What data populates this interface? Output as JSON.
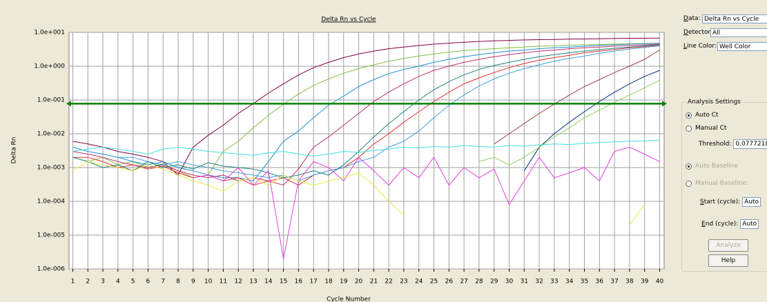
{
  "chart_data": {
    "type": "line",
    "title": "Delta Rn vs Cycle",
    "x_label": "Cycle Number",
    "y_label": "Delta Rn",
    "log_scale": true,
    "grid": true,
    "x": [
      1,
      2,
      3,
      4,
      5,
      6,
      7,
      8,
      9,
      10,
      11,
      12,
      13,
      14,
      15,
      16,
      17,
      18,
      19,
      20,
      21,
      22,
      23,
      24,
      25,
      26,
      27,
      28,
      29,
      30,
      31,
      32,
      33,
      34,
      35,
      36,
      37,
      38,
      39,
      40
    ],
    "xlim": [
      0.75,
      40.3
    ],
    "xticks": [
      1,
      2,
      3,
      4,
      5,
      6,
      7,
      8,
      9,
      10,
      11,
      12,
      13,
      14,
      15,
      16,
      17,
      18,
      19,
      20,
      21,
      22,
      23,
      24,
      25,
      26,
      27,
      28,
      29,
      30,
      31,
      32,
      33,
      34,
      35,
      36,
      37,
      38,
      39,
      40
    ],
    "ylim": [
      1e-06,
      10
    ],
    "yticks": [
      {
        "value": 1e-06,
        "label": "1.0e-006"
      },
      {
        "value": 1e-05,
        "label": "1.0e-005"
      },
      {
        "value": 0.0001,
        "label": "1.0e-004"
      },
      {
        "value": 0.001,
        "label": "1.0e-003"
      },
      {
        "value": 0.01,
        "label": "1.0e-002"
      },
      {
        "value": 0.1,
        "label": "1.0e-001"
      },
      {
        "value": 1,
        "label": "1.0e+000"
      },
      {
        "value": 10,
        "label": "1.0e+001"
      }
    ],
    "threshold": {
      "value": 0.0777218,
      "color": "#008000"
    },
    "series": [
      {
        "color": "#800040",
        "values": [
          0.006,
          0.005,
          0.004,
          0.003,
          0.0025,
          0.002,
          0.0015,
          0.0006,
          0.004,
          0.009,
          0.018,
          0.04,
          0.078,
          0.16,
          0.3,
          0.55,
          0.9,
          1.3,
          1.8,
          2.3,
          2.8,
          3.3,
          3.7,
          4.1,
          4.5,
          4.8,
          5.1,
          5.4,
          5.6,
          5.8,
          6,
          6.1,
          6.2,
          6.3,
          6.4,
          6.5,
          6.6,
          6.7,
          6.7,
          6.8
        ]
      },
      {
        "color": "#80c040",
        "values": [
          0.002,
          0.0015,
          0.002,
          0.0012,
          0.0015,
          0.001,
          0.0013,
          0.0008,
          0.0005,
          0.0006,
          0.003,
          0.006,
          0.015,
          0.035,
          0.075,
          0.15,
          0.27,
          0.42,
          0.62,
          0.85,
          1.1,
          1.4,
          1.7,
          2.0,
          2.3,
          2.6,
          2.9,
          3.1,
          3.3,
          3.5,
          3.7,
          3.9,
          4.0,
          4.2,
          4.3,
          4.4,
          4.5,
          4.6,
          4.7,
          4.8
        ]
      },
      {
        "color": "#1e90d0",
        "values": [
          0.004,
          0.003,
          0.0025,
          0.002,
          0.0015,
          0.0012,
          0.0015,
          0.001,
          0.0008,
          0.0006,
          0.0005,
          0.0005,
          0.0004,
          0.0015,
          0.006,
          0.012,
          0.03,
          0.07,
          0.13,
          0.25,
          0.4,
          0.6,
          0.8,
          1.0,
          1.3,
          1.6,
          1.9,
          2.2,
          2.5,
          2.8,
          3.0,
          3.3,
          3.5,
          3.7,
          3.9,
          4.1,
          4.3,
          4.5,
          4.6,
          4.8
        ]
      },
      {
        "color": "#c03070",
        "values": [
          0.003,
          0.0025,
          0.002,
          0.0015,
          0.0012,
          0.001,
          0.0012,
          0.0008,
          0.0006,
          0.0005,
          0.0006,
          0.0004,
          0.0005,
          0.0004,
          0.0003,
          0.0009,
          0.004,
          0.008,
          0.018,
          0.04,
          0.09,
          0.17,
          0.3,
          0.5,
          0.75,
          1.0,
          1.3,
          1.6,
          1.9,
          2.2,
          2.5,
          2.8,
          3.0,
          3.3,
          3.5,
          3.7,
          3.9,
          4.1,
          4.3,
          4.5
        ]
      },
      {
        "color": "#e03030",
        "values": [
          0.002,
          0.002,
          0.0015,
          0.001,
          0.0012,
          0.0009,
          0.0011,
          0.0007,
          0.0005,
          0.0006,
          0.0004,
          0.0005,
          0.0003,
          0.0004,
          0.0005,
          0.0003,
          0.0006,
          0.0008,
          0.001,
          0.002,
          0.005,
          0.01,
          0.022,
          0.045,
          0.09,
          0.17,
          0.3,
          0.45,
          0.65,
          0.9,
          1.2,
          1.5,
          1.8,
          2.1,
          2.5,
          2.8,
          3.1,
          3.5,
          3.8,
          4.2
        ]
      },
      {
        "color": "#208080",
        "values": [
          0.002,
          0.0015,
          0.001,
          0.0012,
          0.0008,
          0.0015,
          0.001,
          0.0012,
          0.0009,
          0.0014,
          0.0011,
          0.001,
          0.0009,
          0.0007,
          0.0005,
          0.0006,
          0.0008,
          0.0006,
          0.0012,
          0.003,
          0.008,
          0.02,
          0.045,
          0.1,
          0.2,
          0.35,
          0.55,
          0.8,
          1.05,
          1.3,
          1.6,
          1.9,
          2.2,
          2.5,
          2.8,
          3.1,
          3.4,
          3.7,
          4.0,
          4.4
        ]
      },
      {
        "color": "#40a0e0",
        "values": [
          0.004,
          0.003,
          0.0025,
          0.002,
          0.002,
          0.0015,
          0.0012,
          0.0015,
          0.0012,
          0.001,
          0.0008,
          0.0007,
          0.0006,
          0.0005,
          0.0006,
          0.0004,
          0.0006,
          0.0008,
          0.001,
          0.0015,
          0.002,
          0.004,
          0.006,
          0.012,
          0.03,
          0.07,
          0.14,
          0.26,
          0.42,
          0.62,
          0.85,
          1.1,
          1.4,
          1.7,
          2.0,
          2.4,
          2.8,
          3.2,
          3.6,
          4.0
        ]
      },
      {
        "color": "#a04040",
        "values": [
          null,
          null,
          null,
          null,
          null,
          null,
          null,
          null,
          null,
          null,
          null,
          null,
          null,
          null,
          null,
          null,
          null,
          null,
          null,
          null,
          null,
          null,
          null,
          null,
          null,
          null,
          null,
          null,
          0.005,
          0.01,
          0.02,
          0.04,
          0.075,
          0.14,
          0.25,
          0.4,
          0.65,
          1.0,
          1.6,
          3.0
        ]
      },
      {
        "color": "#003080",
        "values": [
          null,
          null,
          null,
          null,
          null,
          null,
          null,
          null,
          null,
          null,
          null,
          null,
          null,
          null,
          null,
          null,
          null,
          null,
          null,
          null,
          null,
          null,
          null,
          null,
          null,
          null,
          null,
          null,
          null,
          null,
          0.0008,
          0.004,
          0.01,
          0.022,
          0.045,
          0.09,
          0.17,
          0.3,
          0.5,
          0.75
        ]
      },
      {
        "color": "#90d060",
        "values": [
          null,
          null,
          null,
          null,
          null,
          null,
          null,
          null,
          null,
          null,
          null,
          null,
          null,
          null,
          null,
          null,
          null,
          null,
          null,
          null,
          null,
          null,
          null,
          null,
          null,
          null,
          null,
          0.0015,
          0.002,
          0.0012,
          0.002,
          0.004,
          0.008,
          0.015,
          0.03,
          0.05,
          0.085,
          0.14,
          0.23,
          0.38
        ]
      },
      {
        "color": "#40e0e0",
        "values": [
          0.003,
          0.0035,
          0.004,
          0.0035,
          0.003,
          0.0025,
          0.0035,
          0.004,
          0.0035,
          0.003,
          0.0028,
          0.0025,
          0.0023,
          0.0027,
          0.003,
          0.0025,
          0.0022,
          0.0025,
          0.003,
          0.0028,
          0.0032,
          0.0035,
          0.004,
          0.0038,
          0.0042,
          0.004,
          0.0045,
          0.0042,
          0.004,
          0.0045,
          0.0043,
          0.0047,
          0.005,
          0.0048,
          0.0052,
          0.0055,
          0.0058,
          0.006,
          0.0062,
          0.0065
        ]
      },
      {
        "color": "#e040e0",
        "values": [
          null,
          null,
          null,
          null,
          null,
          null,
          null,
          null,
          0.0005,
          0.0006,
          0.0004,
          0.001,
          0.0003,
          0.0008,
          2e-06,
          0.0004,
          0.0015,
          0.001,
          0.0004,
          0.002,
          0.0008,
          0.0003,
          0.001,
          0.0005,
          0.002,
          0.0003,
          0.001,
          0.0005,
          0.0009,
          8e-05,
          0.0004,
          0.002,
          0.0005,
          0.0007,
          0.001,
          0.0004,
          0.003,
          0.004,
          0.0025,
          0.0015
        ]
      },
      {
        "color": "#e8e840",
        "values": [
          0.0008,
          0.0015,
          0.0012,
          0.001,
          0.0008,
          0.0012,
          0.0009,
          0.0006,
          0.0004,
          0.0003,
          0.0002,
          0.0004,
          0.0005,
          0.0003,
          0.0006,
          0.0004,
          0.0003,
          0.0004,
          0.0005,
          0.0007,
          0.0003,
          0.0001,
          4e-05,
          null,
          null,
          null,
          null,
          null,
          null,
          null,
          null,
          null,
          null,
          null,
          null,
          null,
          null,
          2e-05,
          8e-05,
          null
        ]
      }
    ]
  },
  "panel": {
    "data": {
      "label": "Data:",
      "value": "Delta Rn vs Cycle"
    },
    "detector": {
      "label": "Detector:",
      "value": "All"
    },
    "line_color": {
      "label": "Line Color:",
      "value": "Well Color"
    },
    "analysis_settings": {
      "title": "Analysis Settings",
      "auto_ct": "Auto Ct",
      "manual_ct": "Manual Ct",
      "threshold_label": "Threshold:",
      "auto_baseline": "Auto Baseline",
      "manual_baseline": "Manual Baseline:",
      "start_label": "Start (cycle):",
      "start_value": "Auto",
      "end_label": "End (cycle):",
      "end_value": "Auto",
      "analyze": "Analyze",
      "help": "Help"
    }
  }
}
